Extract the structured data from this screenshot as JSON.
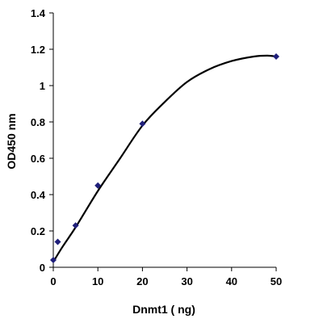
{
  "chart_data": {
    "type": "scatter",
    "title": "",
    "xlabel": "Dnmt1 ( ng)",
    "ylabel": "OD450 nm",
    "xlim": [
      0,
      50
    ],
    "ylim": [
      0,
      1.4
    ],
    "xticks": [
      0,
      10,
      20,
      30,
      40,
      50
    ],
    "yticks": [
      0,
      0.2,
      0.4,
      0.6,
      0.8,
      1,
      1.2,
      1.4
    ],
    "grid": false,
    "legend": "none",
    "series": [
      {
        "x": [
          0,
          1,
          5,
          10,
          20,
          50
        ],
        "y": [
          0.04,
          0.14,
          0.23,
          0.45,
          0.79,
          1.16
        ],
        "marker": "diamond",
        "color": "#1f1f7a"
      }
    ],
    "trendline": {
      "x": [
        0,
        2,
        5,
        10,
        15,
        20,
        25,
        30,
        35,
        40,
        45,
        48,
        50
      ],
      "y": [
        0.03,
        0.11,
        0.22,
        0.42,
        0.6,
        0.78,
        0.91,
        1.02,
        1.09,
        1.135,
        1.16,
        1.165,
        1.16
      ],
      "color": "#000000"
    }
  }
}
